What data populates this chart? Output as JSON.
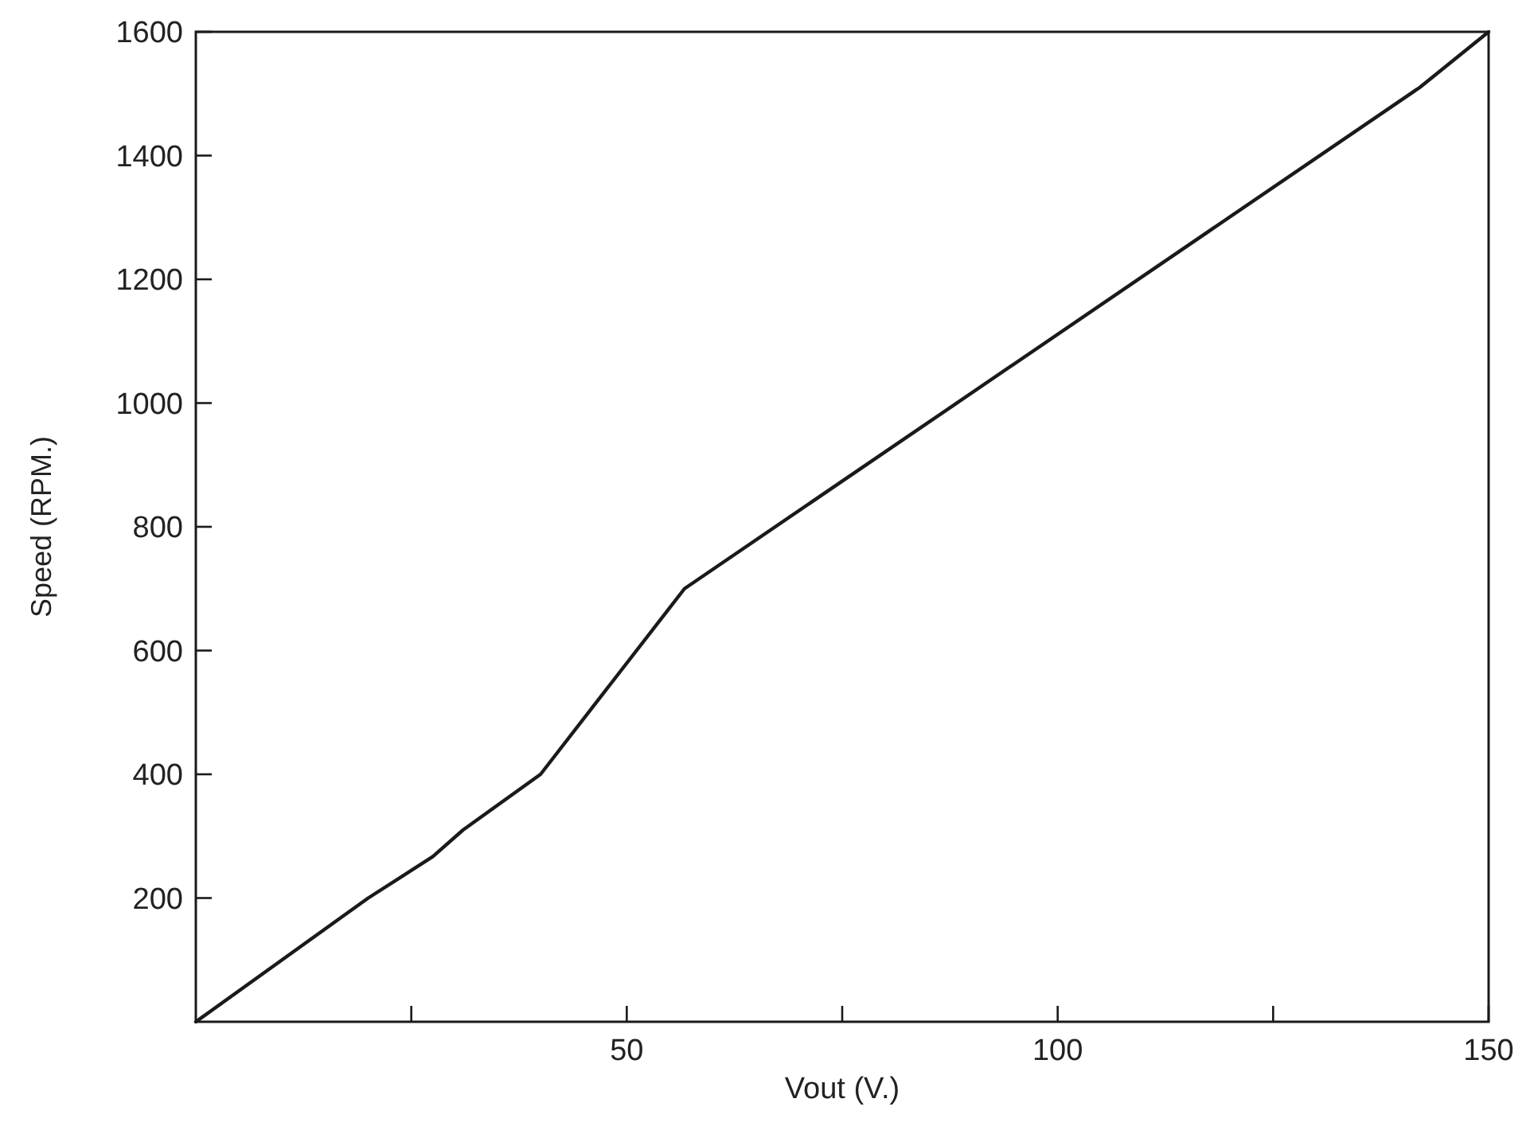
{
  "chart_data": {
    "type": "line",
    "xlabel": "Vout (V.)",
    "ylabel": "Speed (RPM.)",
    "x": [
      0,
      20,
      27.5,
      31,
      40,
      56.7,
      142,
      150
    ],
    "series": [
      {
        "color": "#1a1a1a",
        "values": [
          0,
          200,
          267,
          310,
          400,
          700,
          1510,
          1600
        ]
      }
    ],
    "xlim": [
      0,
      150
    ],
    "ylim": [
      0,
      1600
    ],
    "xticks": [
      {
        "value": 25,
        "label": null
      },
      50,
      {
        "value": 75,
        "label": null
      },
      100,
      {
        "value": 125,
        "label": null
      },
      150
    ],
    "yticks": [
      200,
      400,
      600,
      800,
      1000,
      1200,
      1400,
      1600
    ],
    "marker": "none",
    "line_style": "solid"
  }
}
